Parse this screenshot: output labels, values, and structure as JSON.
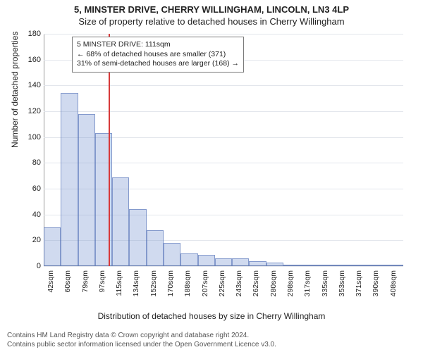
{
  "title_address": "5, MINSTER DRIVE, CHERRY WILLINGHAM, LINCOLN, LN3 4LP",
  "title_sub": "Size of property relative to detached houses in Cherry Willingham",
  "ylabel": "Number of detached properties",
  "xlabel": "Distribution of detached houses by size in Cherry Willingham",
  "footer1": "Contains HM Land Registry data © Crown copyright and database right 2024.",
  "footer2": "Contains public sector information licensed under the Open Government Licence v3.0.",
  "infobox": {
    "line1": "5 MINSTER DRIVE: 111sqm",
    "line2": "← 68% of detached houses are smaller (371)",
    "line3": "31% of semi-detached houses are larger (168) →"
  },
  "chart": {
    "type": "histogram",
    "bar_color": "rgba(120,150,210,0.35)",
    "bar_border": "rgba(80,110,180,0.6)",
    "refline_color": "#d73a3a",
    "refline_x_value": 111,
    "background": "#ffffff",
    "grid_color": "#e3e6ec",
    "ylim": [
      0,
      180
    ],
    "ytick_step": 20,
    "x_start": 42,
    "x_step_label": 18.3,
    "n_bins": 21,
    "xticklabels": [
      "42sqm",
      "60sqm",
      "79sqm",
      "97sqm",
      "115sqm",
      "134sqm",
      "152sqm",
      "170sqm",
      "188sqm",
      "207sqm",
      "225sqm",
      "243sqm",
      "262sqm",
      "280sqm",
      "298sqm",
      "317sqm",
      "335sqm",
      "353sqm",
      "371sqm",
      "390sqm",
      "408sqm"
    ],
    "values": [
      30,
      134,
      118,
      103,
      69,
      44,
      28,
      18,
      10,
      9,
      6,
      6,
      4,
      3,
      1,
      1,
      0,
      0,
      1,
      1,
      1
    ],
    "yticklabels": [
      "0",
      "20",
      "40",
      "60",
      "80",
      "100",
      "120",
      "140",
      "160",
      "180"
    ]
  }
}
